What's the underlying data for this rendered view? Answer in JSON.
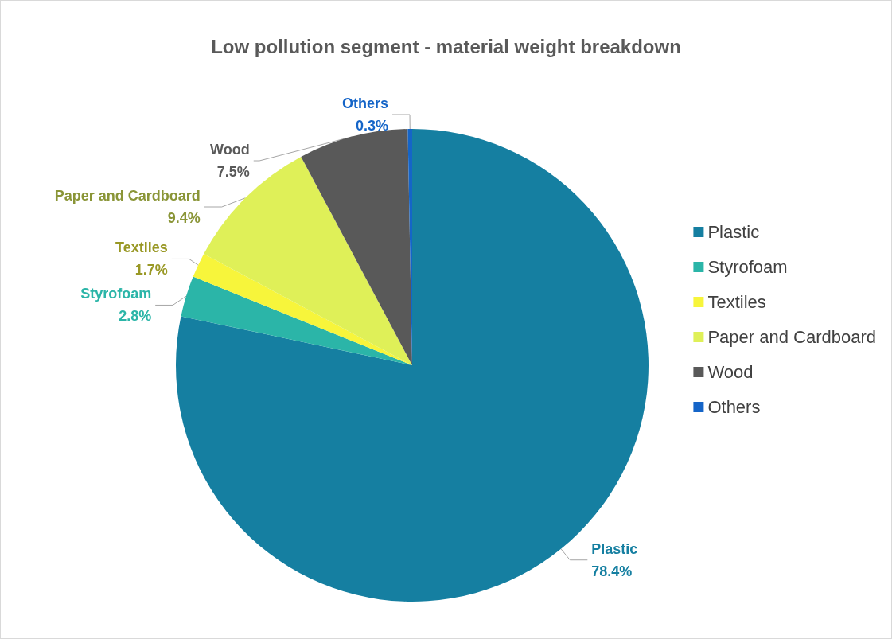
{
  "chart_data": {
    "type": "pie",
    "title": "Low pollution segment - material weight breakdown",
    "categories": [
      "Plastic",
      "Styrofoam",
      "Textiles",
      "Paper and Cardboard",
      "Wood",
      "Others"
    ],
    "values": [
      78.4,
      2.8,
      1.7,
      9.4,
      7.5,
      0.3
    ],
    "value_labels": [
      "78.4%",
      "2.8%",
      "1.7%",
      "9.4%",
      "7.5%",
      "0.3%"
    ],
    "colors": [
      "#157fa1",
      "#2bb5a8",
      "#f7f53b",
      "#dff058",
      "#595959",
      "#1565c8"
    ],
    "legend": "right"
  }
}
